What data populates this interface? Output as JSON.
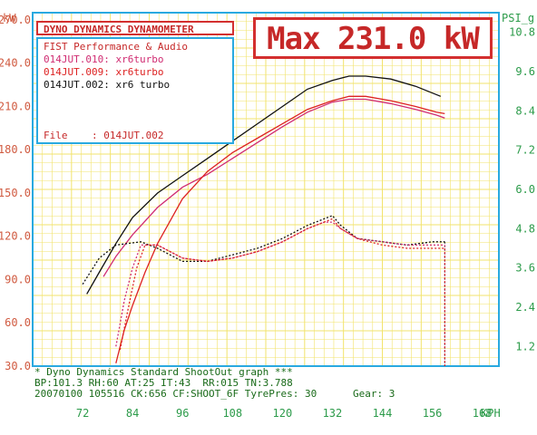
{
  "colors": {
    "grid": "#f2e36c",
    "axis_left": "#d05a40",
    "axis_right": "#2c9b4a",
    "frame": "#29a9e0",
    "title_red": "#c62828",
    "run1": "#d02c72",
    "run2": "#dd2222",
    "run3": "#111111",
    "footer_green": "#1a6b1a"
  },
  "header": {
    "title": "DYNO DYNAMICS DYNAMOMETER",
    "shop": "FIST Performance & Audio",
    "runs": [
      {
        "file": "014JUT.010:",
        "name": "xr6turbo",
        "color": "#d02c72"
      },
      {
        "file": "014JUT.009:",
        "name": "xr6turbo",
        "color": "#dd2222"
      },
      {
        "file": "014JUT.002:",
        "name": "xr6 turbo",
        "color": "#111111"
      }
    ],
    "file_label": "File",
    "file_value": ": 014JUT.002",
    "max_label": "Max 231.0 kW"
  },
  "footer": {
    "line1": "* Dyno Dynamics Standard ShootOut graph ***",
    "line2": "BP:101.3 RH:60 AT:25 IT:43  RR:015 TN:3.788",
    "line3": "20070100 105516 CK:656 CF:SHOOT_6F TyrePres: 30",
    "gear": "Gear: 3"
  },
  "chart_data": {
    "type": "line",
    "xlabel": "KPH",
    "ylabel_left": "kW",
    "ylabel_right": "PSI_g",
    "xlim": [
      60,
      172
    ],
    "ylim_left": [
      30,
      275
    ],
    "ylim_right": [
      0.6,
      11.4
    ],
    "x_ticks": [
      72,
      84,
      96,
      108,
      120,
      132,
      144,
      156,
      168
    ],
    "y_ticks_left": [
      "30.0",
      "60.0",
      "90.0",
      "120.0",
      "150.0",
      "180.0",
      "210.0",
      "240.0",
      "270.0"
    ],
    "y_tick_values_left": [
      30,
      60,
      90,
      120,
      150,
      180,
      210,
      240,
      270
    ],
    "y_ticks_right": [
      "1.2",
      "2.4",
      "3.6",
      "4.8",
      "6.0",
      "7.2",
      "8.4",
      "9.6",
      "10.8"
    ],
    "y_tick_values_right": [
      1.2,
      2.4,
      3.6,
      4.8,
      6.0,
      7.2,
      8.4,
      9.6,
      10.8
    ],
    "grid": true,
    "series": [
      {
        "name": "014JUT.002",
        "kind": "power",
        "axis": "left",
        "style": "solid",
        "color": "#111111",
        "x": [
          73,
          76,
          80,
          84,
          90,
          96,
          102,
          108,
          114,
          120,
          126,
          132,
          136,
          140,
          146,
          152,
          158
        ],
        "y": [
          80,
          95,
          115,
          133,
          150,
          162,
          174,
          186,
          198,
          210,
          222,
          228,
          231,
          231,
          229,
          224,
          217
        ]
      },
      {
        "name": "014JUT.010",
        "kind": "power",
        "axis": "left",
        "style": "solid",
        "color": "#d02c72",
        "x": [
          77,
          80,
          84,
          90,
          96,
          102,
          108,
          114,
          120,
          126,
          132,
          136,
          140,
          146,
          152,
          157,
          159
        ],
        "y": [
          92,
          106,
          121,
          140,
          154,
          163,
          174,
          185,
          196,
          206,
          213,
          215,
          215,
          212,
          208,
          204,
          202
        ]
      },
      {
        "name": "014JUT.009",
        "kind": "power",
        "axis": "left",
        "style": "solid",
        "color": "#dd2222",
        "x": [
          80,
          82,
          84,
          87,
          90,
          96,
          102,
          108,
          114,
          120,
          126,
          132,
          136,
          140,
          146,
          152,
          157,
          159
        ],
        "y": [
          32,
          55,
          72,
          95,
          115,
          146,
          165,
          178,
          188,
          198,
          208,
          214,
          217,
          217,
          214,
          210,
          206,
          205
        ]
      },
      {
        "name": "014JUT.002",
        "kind": "boost",
        "axis": "right",
        "style": "dashed",
        "color": "#111111",
        "x": [
          72,
          76,
          80,
          86,
          90,
          96,
          102,
          108,
          114,
          120,
          126,
          130,
          132,
          134,
          138,
          144,
          150,
          156,
          159
        ],
        "y": [
          3.1,
          3.9,
          4.3,
          4.4,
          4.2,
          3.8,
          3.8,
          4.0,
          4.2,
          4.5,
          4.9,
          5.1,
          5.2,
          4.9,
          4.5,
          4.4,
          4.3,
          4.4,
          4.4
        ]
      },
      {
        "name": "014JUT.010",
        "kind": "boost",
        "axis": "right",
        "style": "dashed",
        "color": "#d02c72",
        "x": [
          80,
          82,
          84,
          86,
          90,
          96,
          102,
          108,
          114,
          120,
          126,
          130,
          132,
          134,
          138,
          144,
          150,
          156,
          159
        ],
        "y": [
          1.2,
          2.6,
          3.6,
          4.3,
          4.3,
          3.9,
          3.8,
          3.9,
          4.1,
          4.4,
          4.8,
          5.0,
          5.0,
          4.8,
          4.5,
          4.4,
          4.3,
          4.3,
          4.3
        ]
      },
      {
        "name": "014JUT.009",
        "kind": "boost",
        "axis": "right",
        "style": "dashed",
        "color": "#dd2222",
        "x": [
          81,
          83,
          85,
          87,
          90,
          96,
          102,
          108,
          114,
          120,
          126,
          130,
          132,
          134,
          138,
          144,
          150,
          156,
          159
        ],
        "y": [
          1.1,
          2.4,
          3.6,
          4.3,
          4.3,
          3.9,
          3.8,
          3.9,
          4.1,
          4.4,
          4.8,
          5.0,
          5.1,
          4.8,
          4.5,
          4.3,
          4.2,
          4.2,
          4.2
        ]
      }
    ]
  }
}
